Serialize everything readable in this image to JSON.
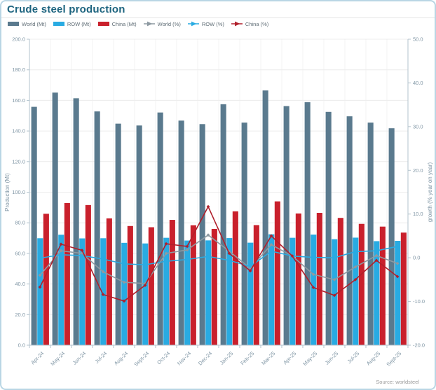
{
  "title": "Crude steel production",
  "source": "Source: worldsteel",
  "colors": {
    "title_text": "#1d647f",
    "card_border": "#b9d6e4",
    "legend_text": "#5d6b74",
    "source_text": "#9a9a9a"
  },
  "chart_data": {
    "type": "combo_bar_line",
    "title": "Crude steel production",
    "legend_position": "top",
    "grid": true,
    "grid_color": "#ececec",
    "vgrid_color": "#f3f3f3",
    "axis_line_color": "#b3c3cd",
    "axis_color": "#7f95a4",
    "categories": [
      "Apr-24",
      "May-24",
      "Jun-24",
      "Jul-24",
      "Aug-24",
      "Sept-24",
      "Oct-24",
      "Nov-24",
      "Dec-24",
      "Jan-25",
      "Feb-25",
      "Mar-25",
      "Apr-25",
      "May-25",
      "Jun-25",
      "Jul-25",
      "Aug-25",
      "Sept-25"
    ],
    "left_axis": {
      "label": "Production (Mt)",
      "min": 0,
      "max": 200,
      "step": 20
    },
    "right_axis": {
      "label": "growth (% year on year)",
      "min": -20,
      "max": 50,
      "step": 10
    },
    "bar_series": [
      {
        "name": "World (Mt)",
        "color": "#5a7a8e",
        "values": [
          155.8,
          165.1,
          161.4,
          152.8,
          144.8,
          143.6,
          152.1,
          146.8,
          144.5,
          157.5,
          145.5,
          166.5,
          156.3,
          158.8,
          152.5,
          149.6,
          145.5,
          141.8
        ]
      },
      {
        "name": "ROW (Mt)",
        "color": "#29abe2",
        "values": [
          69.9,
          72.2,
          69.8,
          69.9,
          66.9,
          66.5,
          70.2,
          68.4,
          68.5,
          70.0,
          67.0,
          72.5,
          70.2,
          72.3,
          69.3,
          70.3,
          68.0,
          68.2
        ]
      },
      {
        "name": "China (Mt)",
        "color": "#c9202c",
        "values": [
          85.9,
          92.9,
          91.6,
          82.9,
          77.9,
          77.1,
          81.9,
          78.4,
          76.0,
          87.5,
          78.5,
          94.0,
          86.1,
          86.5,
          83.2,
          79.3,
          77.5,
          73.6
        ]
      }
    ],
    "line_series": [
      {
        "name": "World (%)",
        "color": "#8e9aa2",
        "values": [
          -4.0,
          1.6,
          1.0,
          -3.2,
          -5.6,
          -5.9,
          1.0,
          1.8,
          5.2,
          1.5,
          -2.4,
          3.0,
          0.4,
          -3.8,
          -5.0,
          -2.1,
          0.5,
          -1.3
        ]
      },
      {
        "name": "ROW (%)",
        "color": "#29abe2",
        "values": [
          -0.1,
          0.7,
          0.5,
          -0.3,
          -1.4,
          -1.6,
          -0.8,
          -0.4,
          0.3,
          -0.6,
          -2.0,
          1.5,
          0.4,
          0.1,
          0.0,
          1.4,
          1.6,
          2.6
        ]
      },
      {
        "name": "China (%)",
        "color": "#b01f2b",
        "values": [
          -6.7,
          3.1,
          1.7,
          -8.4,
          -9.9,
          -6.3,
          3.2,
          2.6,
          11.7,
          1.0,
          -3.0,
          5.0,
          0.4,
          -6.8,
          -8.6,
          -5.0,
          -0.6,
          -4.3
        ]
      }
    ]
  }
}
